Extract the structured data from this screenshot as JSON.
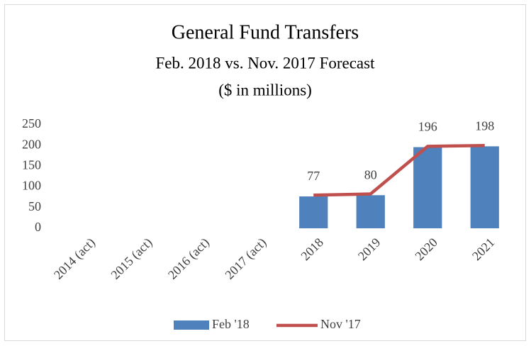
{
  "chart_data": {
    "type": "bar",
    "title": "General Fund Transfers",
    "subtitle": "Feb. 2018 vs. Nov. 2017 Forecast",
    "note": "($ in millions)",
    "categories": [
      "2014 (act)",
      "2015 (act)",
      "2016 (act)",
      "2017 (act)",
      "2018",
      "2019",
      "2020",
      "2021"
    ],
    "series": [
      {
        "name": "Feb '18",
        "type": "bar",
        "color": "#4f81bd",
        "values": [
          null,
          null,
          null,
          null,
          77,
          80,
          196,
          198
        ]
      },
      {
        "name": "Nov '17",
        "type": "line",
        "color": "#c0504d",
        "values": [
          null,
          null,
          null,
          null,
          80,
          83,
          198,
          200
        ]
      }
    ],
    "ylim": [
      0,
      250
    ],
    "yticks": [
      0,
      50,
      100,
      150,
      200,
      250
    ],
    "grid": false,
    "legend": "bottom"
  }
}
